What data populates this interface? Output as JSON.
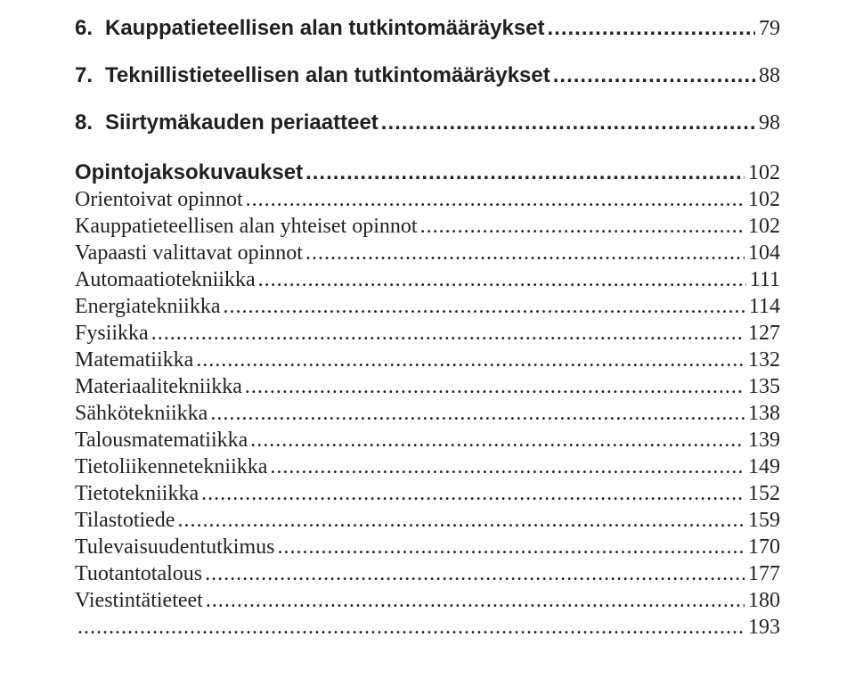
{
  "chapters": [
    {
      "num": "6.",
      "title": "Kauppatieteellisen alan tutkintomääräykset",
      "page": "79"
    },
    {
      "num": "7.",
      "title": "Teknillistieteellisen alan tutkintomääräykset",
      "page": "88"
    },
    {
      "num": "8.",
      "title": "Siirtymäkauden periaatteet",
      "page": "98"
    }
  ],
  "section_title": "Opintojaksokuvaukset",
  "section_page": "102",
  "subs": [
    {
      "title": "Orientoivat opinnot",
      "page": "102"
    },
    {
      "title": "Kauppatieteellisen alan yhteiset opinnot",
      "page": "102"
    },
    {
      "title": "Vapaasti valittavat opinnot",
      "page": "104"
    },
    {
      "title": "Automaatiotekniikka",
      "page": "111"
    },
    {
      "title": "Energiatekniikka",
      "page": "114"
    },
    {
      "title": "Fysiikka",
      "page": "127"
    },
    {
      "title": "Matematiikka",
      "page": "132"
    },
    {
      "title": "Materiaalitekniikka",
      "page": "135"
    },
    {
      "title": "Sähkötekniikka",
      "page": "138"
    },
    {
      "title": "Talousmatematiikka",
      "page": "139"
    },
    {
      "title": "Tietoliikennetekniikka",
      "page": "149"
    },
    {
      "title": "Tietotekniikka",
      "page": "152"
    },
    {
      "title": "Tilastotiede",
      "page": "159"
    },
    {
      "title": "Tulevaisuudentutkimus",
      "page": "170"
    },
    {
      "title": "Tuotantotalous",
      "page": "177"
    },
    {
      "title": "Viestintätieteet",
      "page": "180"
    },
    {
      "title": "",
      "page": "193"
    }
  ],
  "dots_h": "..........................................................................................................",
  "dots_s": "............................................................................................................................",
  "colors": {
    "text": "#231f20",
    "background": "#ffffff"
  },
  "typography": {
    "heading_font": "Arial",
    "body_font": "Georgia",
    "font_size_pt": 18
  }
}
